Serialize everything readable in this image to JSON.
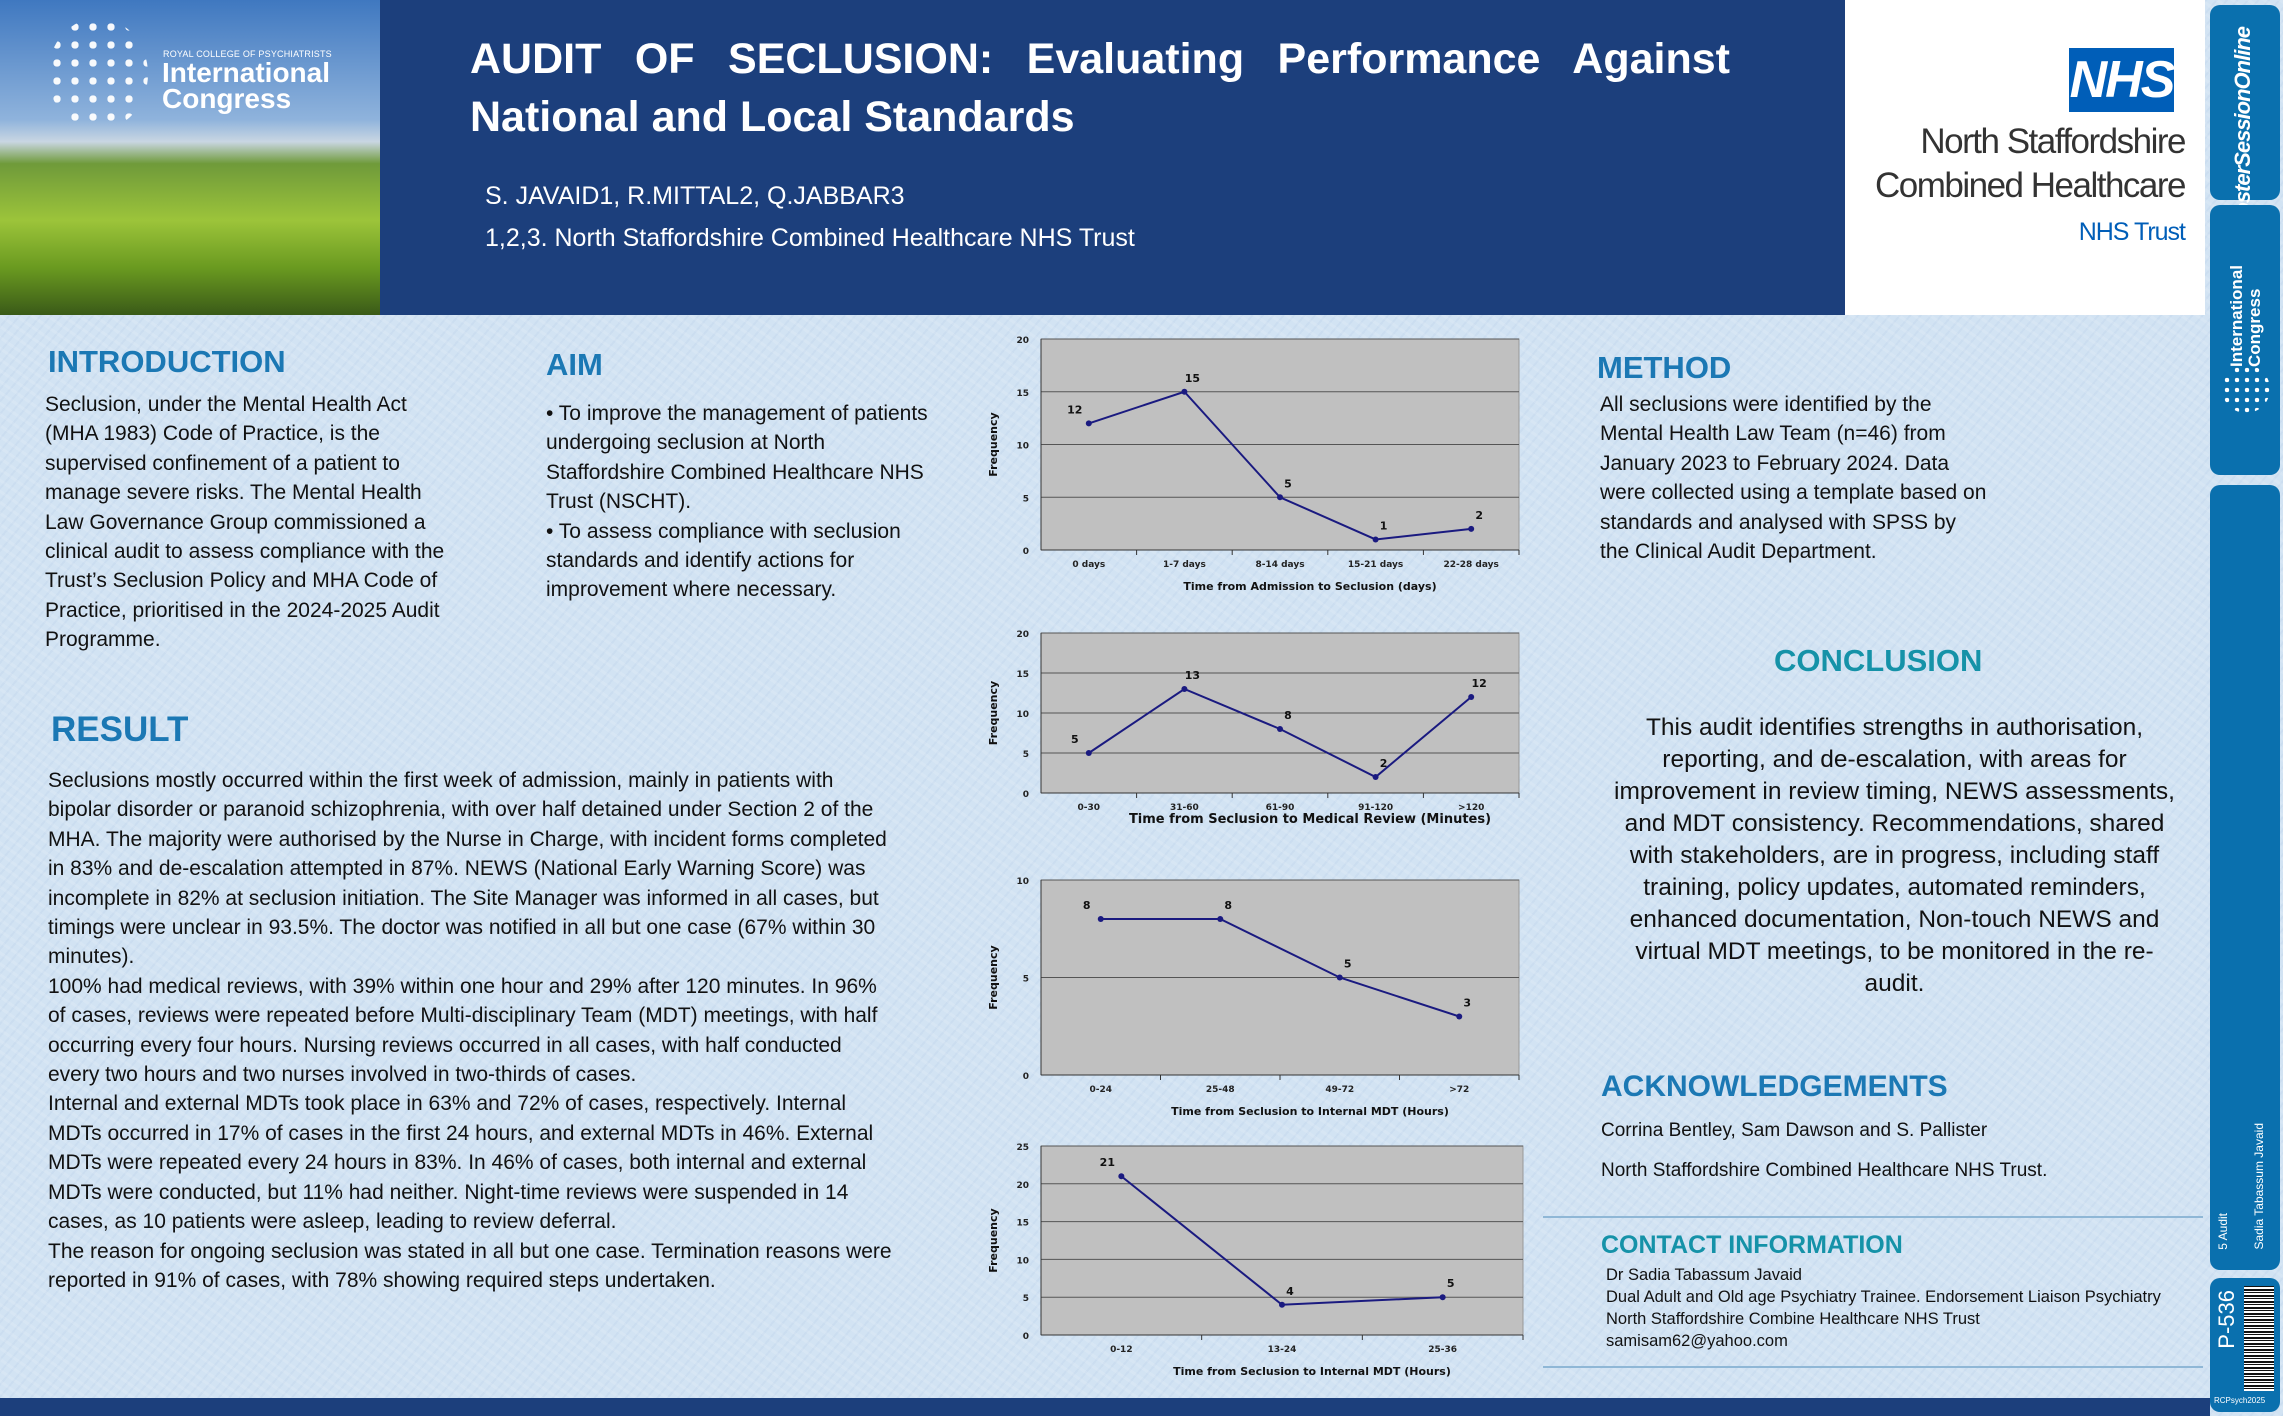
{
  "header": {
    "logo": {
      "org": "ROYAL COLLEGE OF PSYCHIATRISTS",
      "line1": "International",
      "line2": "Congress"
    },
    "title": "AUDIT OF SECLUSION: Evaluating Performance Against National and Local Standards",
    "authors": "S. JAVAID1, R.MITTAL2, Q.JABBAR3",
    "affiliation": "1,2,3. North Staffordshire Combined Healthcare NHS Trust",
    "nhs_logo": {
      "mark": "NHS",
      "name_line1": "North Staffordshire",
      "name_line2": "Combined Healthcare",
      "trust": "NHS Trust"
    }
  },
  "introduction": {
    "heading": "INTRODUCTION",
    "text": "Seclusion, under the Mental Health Act (MHA 1983) Code of Practice, is the supervised confinement of a patient to manage severe risks. The Mental Health Law Governance Group commissioned a clinical audit to assess compliance with the Trust’s Seclusion Policy and MHA Code of Practice, prioritised in the 2024-2025 Audit Programme."
  },
  "aim": {
    "heading": "AIM",
    "items": [
      "• To improve the management of patients undergoing seclusion at North Staffordshire Combined Healthcare NHS Trust (NSCHT).",
      "• To assess compliance with seclusion standards and identify actions for improvement where necessary."
    ]
  },
  "result": {
    "heading": "RESULT",
    "paragraphs": [
      "Seclusions mostly occurred within the first week of admission, mainly in patients with bipolar disorder or paranoid schizophrenia, with over half detained under Section 2 of the MHA. The majority were authorised by the Nurse in Charge, with incident forms completed in 83% and de-escalation attempted in 87%. NEWS (National Early Warning Score) was incomplete in 82% at seclusion initiation. The Site Manager was informed in all cases, but timings were unclear in 93.5%. The doctor was notified in all but one case (67% within 30 minutes).",
      "100% had medical reviews, with 39% within one hour and 29% after 120 minutes. In 96% of cases, reviews were repeated before Multi-disciplinary Team (MDT) meetings, with half occurring every four hours. Nursing reviews occurred in all cases, with half conducted every two hours and two nurses involved in two-thirds of cases.",
      "Internal and external MDTs took place in 63% and 72% of cases, respectively. Internal MDTs occurred in 17% of cases in the first 24 hours, and external MDTs in 46%. External MDTs were repeated every 24 hours in 83%. In 46% of cases, both internal and external MDTs were conducted, but 11% had neither. Night-time reviews were suspended in 14 cases, as 10 patients were asleep, leading to review deferral.",
      "The reason for ongoing seclusion was stated in all but one case. Termination reasons were reported in 91% of cases, with 78% showing required steps undertaken."
    ]
  },
  "method": {
    "heading": "METHOD",
    "text": "All seclusions were identified by the Mental Health Law Team (n=46) from January 2023 to February 2024. Data were collected using a template based on standards and analysed with SPSS by the Clinical Audit Department."
  },
  "conclusion": {
    "heading": "CONCLUSION",
    "text": "This audit identifies strengths in authorisation, reporting, and de-escalation, with areas for improvement in review timing, NEWS assessments, and MDT consistency. Recommendations, shared with stakeholders, are in progress, including staff training, policy updates, automated reminders, enhanced documentation, Non-touch NEWS and virtual MDT meetings, to be monitored in the re-audit."
  },
  "acknowledgements": {
    "heading": "ACKNOWLEDGEMENTS",
    "names": "Corrina Bentley, Sam Dawson and S. Pallister",
    "org": "North Staffordshire Combined Healthcare NHS Trust."
  },
  "contact": {
    "heading": "CONTACT INFORMATION",
    "lines": [
      "Dr Sadia Tabassum Javaid",
      "Dual Adult and Old age Psychiatry Trainee. Endorsement Liaison Psychiatry",
      "North Staffordshire Combine Healthcare NHS Trust",
      "samisam62@yahoo.com"
    ]
  },
  "sidebar": {
    "poster_session": "PosterSessionOnline",
    "congress_line1": "International",
    "congress_line2": "Congress",
    "category": "5 Audit",
    "presenter": "Sadia Tabassum Javaid",
    "poster_id": "P-536",
    "event_tag": "RCPsych2025"
  },
  "colors": {
    "header": "#1c3f7c",
    "heading": "#1b78b4",
    "line": "#1a1a80",
    "plot_bg": "#c0c0c0",
    "sidebar": "#0a70ae",
    "nhs_blue": "#005eb8"
  },
  "chart_data": [
    {
      "type": "line",
      "categories": [
        "0 days",
        "1-7 days",
        "8-14 days",
        "15-21 days",
        "22-28 days"
      ],
      "values": [
        12,
        15,
        5,
        1,
        2
      ],
      "xlabel": "Time from Admission to Seclusion (days)",
      "ylabel": "Frequency",
      "ylim": [
        0,
        20
      ],
      "yticks": [
        0,
        5,
        10,
        15,
        20
      ],
      "grid": true
    },
    {
      "type": "line",
      "categories": [
        "0-30",
        "31-60",
        "61-90",
        "91-120",
        ">120"
      ],
      "values": [
        5,
        13,
        8,
        2,
        12
      ],
      "xlabel": "Time from Seclusion to Medical Review (Minutes)",
      "ylabel": "Frequency",
      "ylim": [
        0,
        20
      ],
      "yticks": [
        0,
        5,
        10,
        15,
        20
      ],
      "grid": true
    },
    {
      "type": "line",
      "categories": [
        "0-24",
        "25-48",
        "49-72",
        ">72"
      ],
      "values": [
        8,
        8,
        5,
        3
      ],
      "xlabel": "Time from Seclusion to Internal MDT (Hours)",
      "ylabel": "Frequency",
      "ylim": [
        0,
        10
      ],
      "yticks": [
        0,
        5,
        10
      ],
      "grid": true
    },
    {
      "type": "line",
      "categories": [
        "0-12",
        "13-24",
        "25-36"
      ],
      "values": [
        21,
        4,
        5
      ],
      "xlabel": "Time from Seclusion to Internal MDT (Hours)",
      "ylabel": "Frequency",
      "ylim": [
        0,
        25
      ],
      "yticks": [
        0,
        5,
        10,
        15,
        20,
        25
      ],
      "grid": true
    }
  ]
}
